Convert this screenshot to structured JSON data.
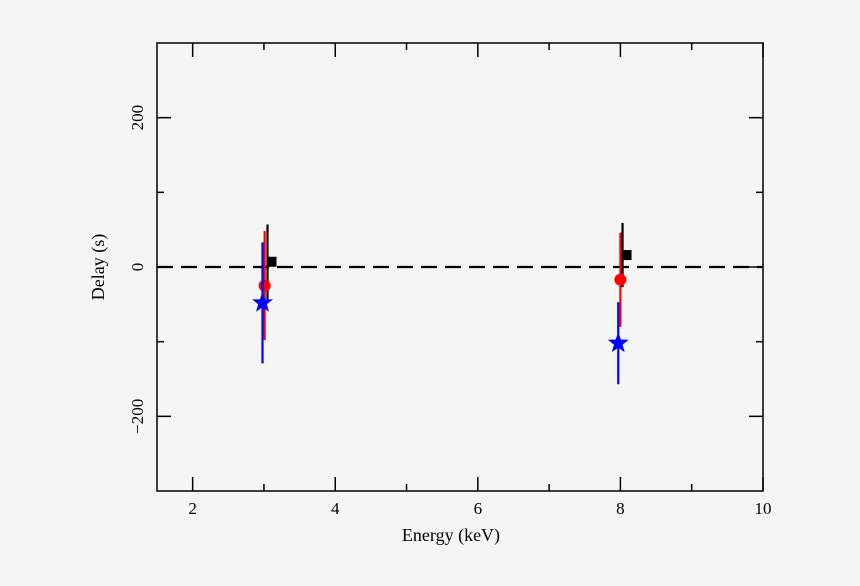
{
  "chart_data": {
    "type": "scatter",
    "title": "",
    "xlabel": "Energy (keV)",
    "ylabel": "Delay (s)",
    "xlim": [
      1.5,
      10
    ],
    "ylim": [
      -300,
      300
    ],
    "x_ticks": [
      2,
      4,
      6,
      8,
      10
    ],
    "x_minor_ticks": [
      3,
      5,
      7,
      9
    ],
    "y_ticks": [
      -200,
      0,
      200
    ],
    "y_minor_ticks": [
      -100,
      100
    ],
    "grid": false,
    "reference_line": {
      "y": 0,
      "style": "dashed",
      "color": "#000000"
    },
    "series": [
      {
        "marker": "square",
        "color": "#000000",
        "x": [
          3.05,
          8.03
        ],
        "y": [
          7,
          16
        ],
        "yerr": [
          50,
          43
        ]
      },
      {
        "marker": "circle",
        "color": "#ff0000",
        "x": [
          3.01,
          8.0
        ],
        "y": [
          -25,
          -17
        ],
        "yerr": [
          73,
          63
        ]
      },
      {
        "marker": "star",
        "color": "#0000ff",
        "x": [
          2.98,
          7.97
        ],
        "y": [
          -48,
          -102
        ],
        "yerr": [
          81,
          55
        ]
      }
    ]
  }
}
